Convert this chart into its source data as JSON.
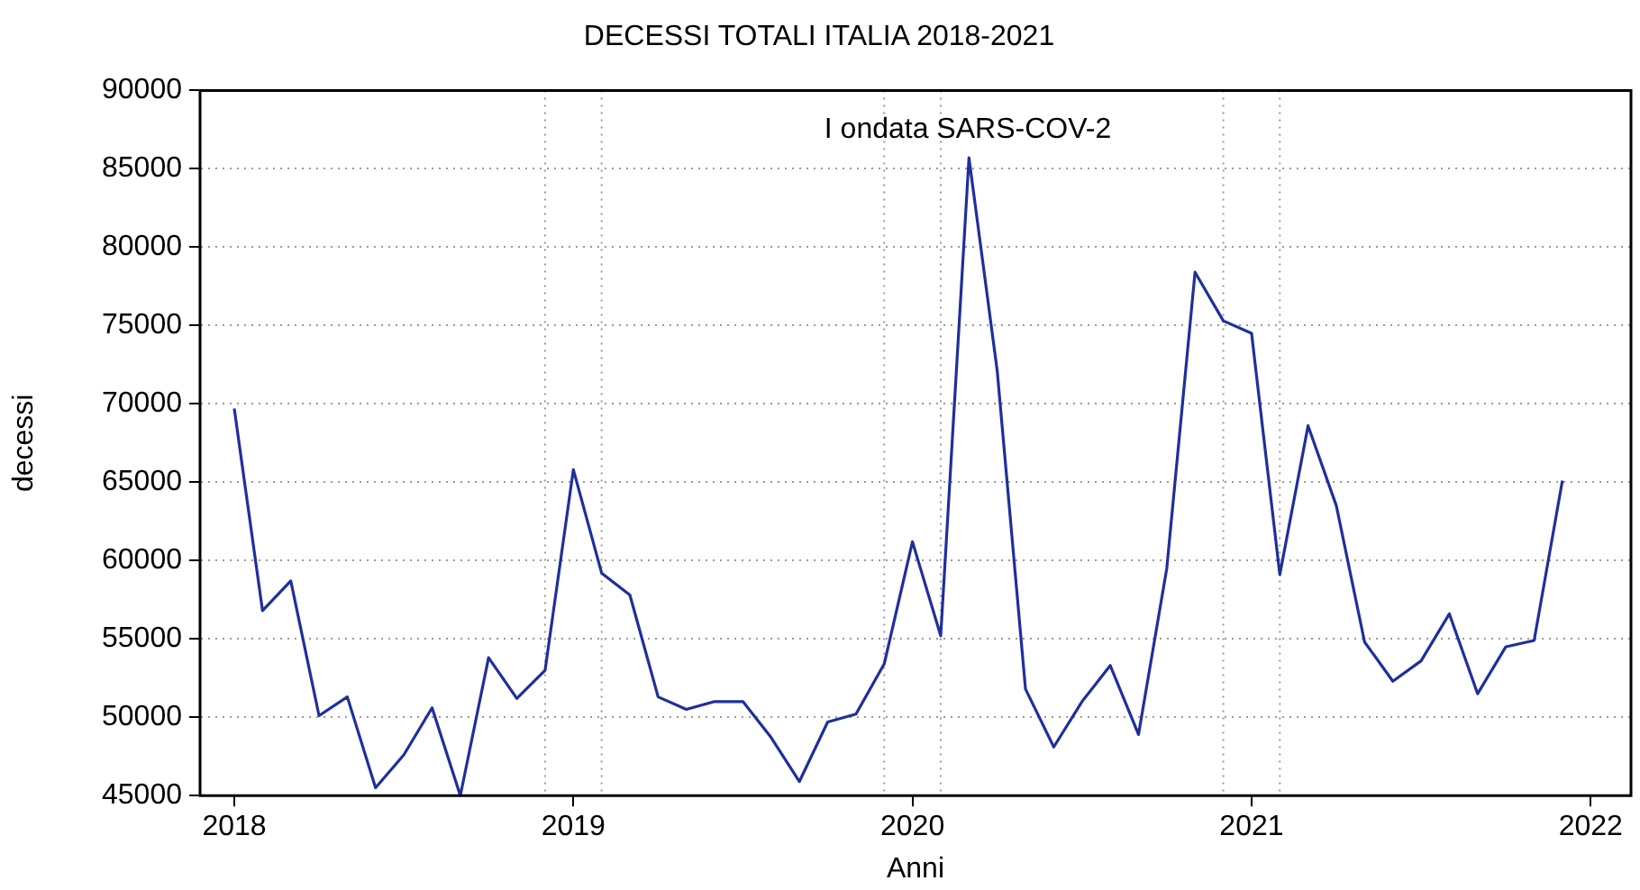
{
  "chart_data": {
    "type": "line",
    "title": "DECESSI TOTALI ITALIA 2018-2021",
    "xlabel": "Anni",
    "ylabel": "decessi",
    "x": [
      "2018-01",
      "2018-02",
      "2018-03",
      "2018-04",
      "2018-05",
      "2018-06",
      "2018-07",
      "2018-08",
      "2018-09",
      "2018-10",
      "2018-11",
      "2018-12",
      "2019-01",
      "2019-02",
      "2019-03",
      "2019-04",
      "2019-05",
      "2019-06",
      "2019-07",
      "2019-08",
      "2019-09",
      "2019-10",
      "2019-11",
      "2019-12",
      "2020-01",
      "2020-02",
      "2020-03",
      "2020-04",
      "2020-05",
      "2020-06",
      "2020-07",
      "2020-08",
      "2020-09",
      "2020-10",
      "2020-11",
      "2020-12",
      "2021-01",
      "2021-02",
      "2021-03",
      "2021-04",
      "2021-05",
      "2021-06",
      "2021-07",
      "2021-08",
      "2021-09",
      "2021-10",
      "2021-11",
      "2021-12"
    ],
    "series": [
      {
        "color": "#1f2f9c",
        "values": [
          69700,
          56800,
          58700,
          50100,
          51300,
          45500,
          47600,
          50600,
          45000,
          53800,
          51200,
          53000,
          65800,
          59200,
          57800,
          51300,
          50500,
          51000,
          51000,
          48700,
          45900,
          49700,
          50200,
          53400,
          61200,
          55200,
          85700,
          72100,
          51800,
          48100,
          51000,
          53300,
          48900,
          59500,
          78400,
          75300,
          74500,
          59100,
          68600,
          63500,
          54800,
          52300,
          53600,
          56600,
          51500,
          54500,
          54900,
          65100
        ]
      }
    ],
    "xlim": [
      "2017-11-25",
      "2022-02-14"
    ],
    "xticks": [
      "2018",
      "2019",
      "2020",
      "2021",
      "2022"
    ],
    "ylim": [
      45000,
      90000
    ],
    "yticks": [
      45000,
      50000,
      55000,
      60000,
      65000,
      70000,
      75000,
      80000,
      85000,
      90000
    ],
    "grid": "y",
    "legend": false,
    "marker": "none",
    "line_style": "solid",
    "ref_lines": [
      {
        "axis": "x",
        "value": "2018-12-01",
        "color": "#999999",
        "line_style": "dotted"
      },
      {
        "axis": "x",
        "value": "2019-02-01",
        "color": "#999999",
        "line_style": "dotted"
      },
      {
        "axis": "x",
        "value": "2019-12-01",
        "color": "#999999",
        "line_style": "dotted"
      },
      {
        "axis": "x",
        "value": "2020-02-01",
        "color": "#999999",
        "line_style": "dotted"
      },
      {
        "axis": "x",
        "value": "2020-12-01",
        "color": "#999999",
        "line_style": "dotted"
      },
      {
        "axis": "x",
        "value": "2021-02-01",
        "color": "#999999",
        "line_style": "dotted"
      }
    ],
    "annotations": [
      "I ondata SARS-COV-2"
    ]
  }
}
